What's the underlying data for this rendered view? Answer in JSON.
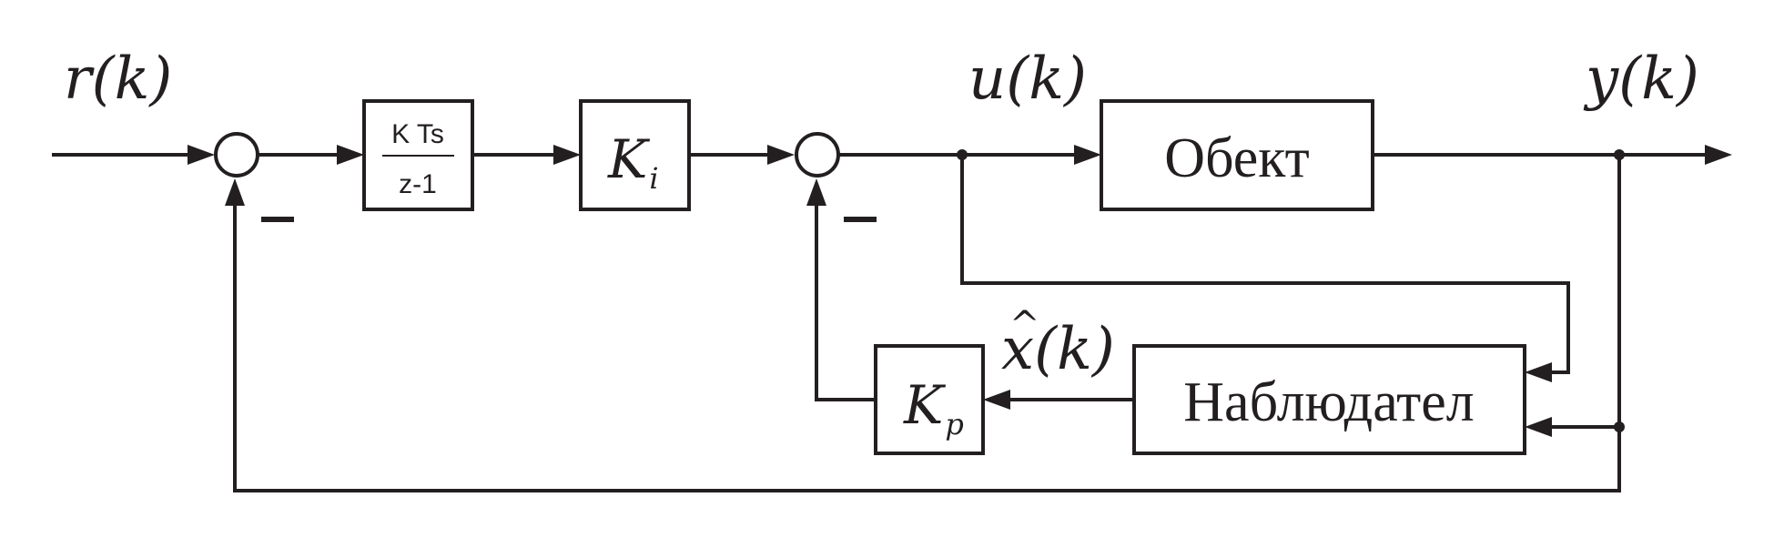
{
  "signals": {
    "reference": "r(k)",
    "control": "u(k)",
    "output": "y(k)",
    "estimate_base": "x",
    "estimate_hat": "^",
    "estimate_arg": "(k)"
  },
  "blocks": {
    "integrator_num": "K Ts",
    "integrator_den": "z-1",
    "integral_gain_main": "K",
    "integral_gain_sub": "i",
    "plant": "Обект",
    "observer": "Наблюдател",
    "feedback_gain_main": "K",
    "feedback_gain_sub": "p"
  },
  "colors": {
    "line": "#231f20",
    "background": "#ffffff"
  }
}
